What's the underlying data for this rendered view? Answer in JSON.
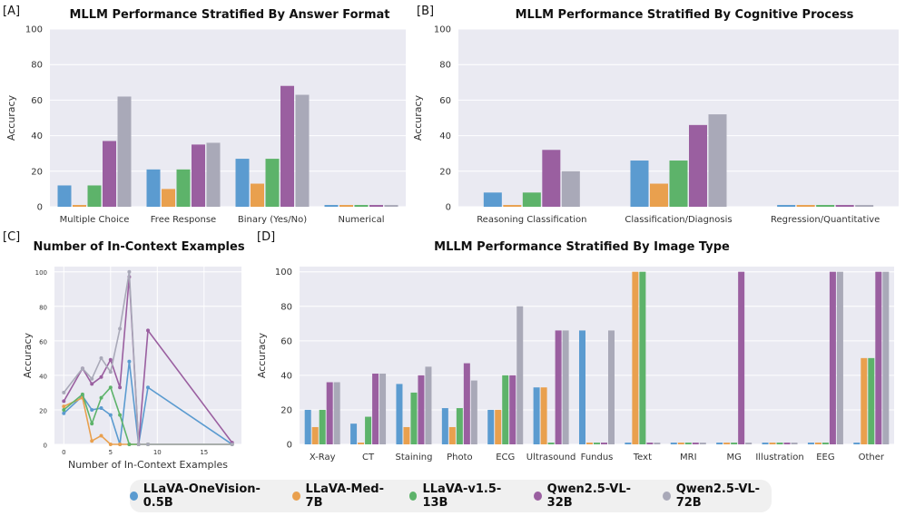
{
  "series_colors": [
    "#5b9bd0",
    "#e9a04e",
    "#5db36a",
    "#9a5fa0",
    "#a9a9b8"
  ],
  "legend": {
    "items": [
      {
        "label": "LLaVA-OneVision-0.5B",
        "color": "#5b9bd0"
      },
      {
        "label": "LLaVA-Med-7B",
        "color": "#e9a04e"
      },
      {
        "label": "LLaVA-v1.5-13B",
        "color": "#5db36a"
      },
      {
        "label": "Qwen2.5-VL-32B",
        "color": "#9a5fa0"
      },
      {
        "label": "Qwen2.5-VL-72B",
        "color": "#a9a9b8"
      }
    ]
  },
  "chart_data": [
    {
      "panel": "[A]",
      "type": "bar",
      "title": "MLLM Performance Stratified By Answer Format",
      "ylabel": "Accuracy",
      "ylim": [
        0,
        100
      ],
      "yticks": [
        0,
        20,
        40,
        60,
        80,
        100
      ],
      "categories": [
        "Multiple Choice",
        "Free Response",
        "Binary (Yes/No)",
        "Numerical"
      ],
      "series": [
        {
          "name": "LLaVA-OneVision-0.5B",
          "values": [
            12,
            21,
            27,
            1
          ]
        },
        {
          "name": "LLaVA-Med-7B",
          "values": [
            1,
            10,
            13,
            1
          ]
        },
        {
          "name": "LLaVA-v1.5-13B",
          "values": [
            12,
            21,
            27,
            1
          ]
        },
        {
          "name": "Qwen2.5-VL-32B",
          "values": [
            37,
            35,
            68,
            1
          ]
        },
        {
          "name": "Qwen2.5-VL-72B",
          "values": [
            62,
            36,
            63,
            1
          ]
        }
      ]
    },
    {
      "panel": "[B]",
      "type": "bar",
      "title": "MLLM Performance Stratified By Cognitive Process",
      "ylabel": "Accuracy",
      "ylim": [
        0,
        100
      ],
      "yticks": [
        0,
        20,
        40,
        60,
        80,
        100
      ],
      "categories": [
        "Reasoning Classification",
        "Classification/Diagnosis",
        "Regression/Quantitative"
      ],
      "series": [
        {
          "name": "LLaVA-OneVision-0.5B",
          "values": [
            8,
            26,
            1
          ]
        },
        {
          "name": "LLaVA-Med-7B",
          "values": [
            1,
            13,
            1
          ]
        },
        {
          "name": "LLaVA-v1.5-13B",
          "values": [
            8,
            26,
            1
          ]
        },
        {
          "name": "Qwen2.5-VL-32B",
          "values": [
            32,
            46,
            1
          ]
        },
        {
          "name": "Qwen2.5-VL-72B",
          "values": [
            20,
            52,
            1
          ]
        }
      ]
    },
    {
      "panel": "[C]",
      "type": "line",
      "title": "Number of In-Context Examples",
      "xlabel": "Number of In-Context Examples",
      "ylabel": "Accuracy",
      "xlim": [
        -1,
        19
      ],
      "ylim": [
        0,
        103
      ],
      "xticks": [
        0,
        5,
        10,
        15
      ],
      "yticks": [
        0,
        20,
        40,
        60,
        80,
        100
      ],
      "series": [
        {
          "name": "LLaVA-OneVision-0.5B",
          "points": [
            [
              0,
              18
            ],
            [
              2,
              28
            ],
            [
              3,
              20
            ],
            [
              4,
              21
            ],
            [
              5,
              17
            ],
            [
              6,
              0
            ],
            [
              7,
              48
            ],
            [
              8,
              0
            ],
            [
              9,
              33
            ],
            [
              18,
              0
            ]
          ]
        },
        {
          "name": "LLaVA-Med-7B",
          "points": [
            [
              0,
              22
            ],
            [
              2,
              27
            ],
            [
              3,
              2
            ],
            [
              4,
              5
            ],
            [
              5,
              0
            ],
            [
              6,
              0
            ],
            [
              7,
              0
            ],
            [
              8,
              0
            ],
            [
              9,
              0
            ],
            [
              18,
              0
            ]
          ]
        },
        {
          "name": "LLaVA-v1.5-13B",
          "points": [
            [
              0,
              20
            ],
            [
              2,
              29
            ],
            [
              3,
              12
            ],
            [
              4,
              27
            ],
            [
              5,
              33
            ],
            [
              6,
              17
            ],
            [
              7,
              0
            ],
            [
              8,
              0
            ],
            [
              9,
              0
            ],
            [
              18,
              0
            ]
          ]
        },
        {
          "name": "Qwen2.5-VL-32B",
          "points": [
            [
              0,
              25
            ],
            [
              2,
              44
            ],
            [
              3,
              35
            ],
            [
              4,
              39
            ],
            [
              5,
              49
            ],
            [
              6,
              33
            ],
            [
              7,
              97
            ],
            [
              8,
              0
            ],
            [
              9,
              66
            ],
            [
              18,
              1
            ]
          ]
        },
        {
          "name": "Qwen2.5-VL-72B",
          "points": [
            [
              0,
              30
            ],
            [
              2,
              44
            ],
            [
              3,
              38
            ],
            [
              4,
              50
            ],
            [
              5,
              42
            ],
            [
              6,
              67
            ],
            [
              7,
              100
            ],
            [
              8,
              0
            ],
            [
              9,
              0
            ],
            [
              18,
              0
            ]
          ]
        }
      ]
    },
    {
      "panel": "[D]",
      "type": "bar",
      "title": "MLLM Performance Stratified By Image Type",
      "ylabel": "Accuracy",
      "ylim": [
        0,
        103
      ],
      "yticks": [
        0,
        20,
        40,
        60,
        80,
        100
      ],
      "categories": [
        "X-Ray",
        "CT",
        "Staining",
        "Photo",
        "ECG",
        "Ultrasound",
        "Fundus",
        "Text",
        "MRI",
        "MG",
        "Illustration",
        "EEG",
        "Other"
      ],
      "series": [
        {
          "name": "LLaVA-OneVision-0.5B",
          "values": [
            20,
            12,
            35,
            21,
            20,
            33,
            66,
            1,
            1,
            1,
            1,
            1,
            1
          ]
        },
        {
          "name": "LLaVA-Med-7B",
          "values": [
            10,
            1,
            10,
            10,
            20,
            33,
            1,
            100,
            1,
            1,
            1,
            1,
            50
          ]
        },
        {
          "name": "LLaVA-v1.5-13B",
          "values": [
            20,
            16,
            30,
            21,
            40,
            1,
            1,
            100,
            1,
            1,
            1,
            1,
            50
          ]
        },
        {
          "name": "Qwen2.5-VL-32B",
          "values": [
            36,
            41,
            40,
            47,
            40,
            66,
            1,
            1,
            1,
            100,
            1,
            100,
            100
          ]
        },
        {
          "name": "Qwen2.5-VL-72B",
          "values": [
            36,
            41,
            45,
            37,
            80,
            66,
            66,
            1,
            1,
            1,
            1,
            100,
            100
          ]
        }
      ]
    }
  ]
}
